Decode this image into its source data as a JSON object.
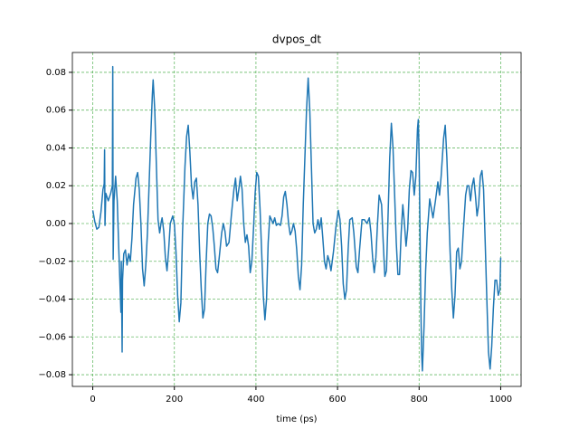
{
  "chart_data": {
    "type": "line",
    "title": "dvpos_dt",
    "xlabel": "time (ps)",
    "x": [
      0,
      5,
      10,
      15,
      20,
      25,
      28,
      29,
      30,
      32,
      38,
      44,
      48,
      49,
      50,
      52,
      56,
      60,
      64,
      67,
      69,
      70,
      72,
      73,
      76,
      80,
      84,
      88,
      92,
      96,
      100,
      106,
      110,
      114,
      118,
      122,
      126,
      130,
      134,
      138,
      142,
      146,
      148,
      152,
      156,
      160,
      164,
      168,
      170,
      174,
      178,
      182,
      186,
      190,
      196,
      200,
      204,
      208,
      212,
      216,
      220,
      226,
      230,
      234,
      238,
      242,
      246,
      250,
      254,
      258,
      262,
      266,
      270,
      274,
      278,
      282,
      286,
      290,
      294,
      298,
      302,
      306,
      310,
      316,
      320,
      324,
      328,
      334,
      340,
      346,
      350,
      354,
      358,
      362,
      366,
      370,
      374,
      378,
      382,
      386,
      390,
      394,
      398,
      402,
      406,
      410,
      414,
      418,
      422,
      426,
      430,
      434,
      438,
      442,
      446,
      450,
      455,
      460,
      464,
      468,
      472,
      476,
      480,
      484,
      488,
      492,
      496,
      500,
      504,
      508,
      512,
      516,
      520,
      524,
      528,
      532,
      536,
      540,
      544,
      548,
      552,
      556,
      560,
      564,
      568,
      572,
      576,
      580,
      584,
      590,
      596,
      602,
      606,
      610,
      614,
      618,
      622,
      626,
      630,
      636,
      640,
      646,
      650,
      654,
      660,
      666,
      672,
      678,
      682,
      686,
      690,
      694,
      698,
      702,
      708,
      712,
      716,
      720,
      724,
      728,
      732,
      736,
      740,
      744,
      748,
      752,
      756,
      760,
      764,
      768,
      772,
      776,
      780,
      784,
      788,
      792,
      796,
      798,
      800,
      802,
      804,
      806,
      808,
      812,
      816,
      820,
      826,
      830,
      834,
      840,
      846,
      850,
      854,
      860,
      864,
      868,
      872,
      876,
      880,
      884,
      888,
      892,
      896,
      900,
      904,
      908,
      914,
      918,
      922,
      926,
      930,
      934,
      938,
      942,
      946,
      950,
      954,
      958,
      962,
      966,
      970,
      974,
      978,
      982,
      986,
      990,
      994,
      998,
      1000
    ],
    "series": [
      {
        "color": "#1f77b4",
        "values": [
          0.007,
          0.001,
          -0.003,
          -0.002,
          0.006,
          0.018,
          0.021,
          0.039,
          -0.001,
          0.016,
          0.012,
          0.016,
          0.02,
          0.083,
          -0.019,
          0.012,
          0.025,
          0.012,
          -0.015,
          -0.034,
          -0.047,
          -0.02,
          -0.068,
          -0.03,
          -0.016,
          -0.014,
          -0.022,
          -0.016,
          -0.02,
          -0.008,
          0.01,
          0.024,
          0.027,
          0.018,
          0.0,
          -0.024,
          -0.033,
          -0.022,
          -0.005,
          0.02,
          0.045,
          0.068,
          0.076,
          0.06,
          0.03,
          0.002,
          -0.005,
          0.001,
          0.003,
          -0.004,
          -0.018,
          -0.025,
          -0.014,
          0.0,
          0.004,
          0.0,
          -0.015,
          -0.038,
          -0.052,
          -0.042,
          -0.005,
          0.03,
          0.046,
          0.052,
          0.038,
          0.02,
          0.013,
          0.022,
          0.024,
          0.01,
          -0.015,
          -0.035,
          -0.05,
          -0.045,
          -0.02,
          0.0,
          0.005,
          0.004,
          -0.002,
          -0.012,
          -0.024,
          -0.026,
          -0.018,
          -0.005,
          0.0,
          -0.004,
          -0.012,
          -0.01,
          0.005,
          0.018,
          0.024,
          0.012,
          0.018,
          0.025,
          0.018,
          0.0,
          -0.01,
          -0.006,
          -0.012,
          -0.026,
          -0.02,
          -0.003,
          0.016,
          0.027,
          0.025,
          0.008,
          -0.015,
          -0.038,
          -0.051,
          -0.04,
          -0.01,
          0.004,
          0.002,
          0.0,
          0.003,
          -0.001,
          0.0,
          -0.001,
          0.004,
          0.014,
          0.017,
          0.01,
          0.0,
          -0.006,
          -0.004,
          0.0,
          -0.004,
          -0.014,
          -0.028,
          -0.035,
          -0.022,
          0.01,
          0.035,
          0.06,
          0.077,
          0.06,
          0.03,
          0.0,
          -0.005,
          -0.003,
          0.002,
          -0.003,
          0.003,
          -0.008,
          -0.02,
          -0.024,
          -0.017,
          -0.02,
          -0.025,
          -0.015,
          -0.002,
          0.007,
          0.002,
          -0.012,
          -0.032,
          -0.04,
          -0.035,
          -0.014,
          0.002,
          0.003,
          -0.005,
          -0.023,
          -0.026,
          -0.014,
          0.002,
          0.002,
          0.0,
          0.003,
          -0.005,
          -0.018,
          -0.026,
          -0.018,
          0.0,
          0.015,
          0.01,
          -0.01,
          -0.028,
          -0.025,
          0.005,
          0.035,
          0.053,
          0.04,
          0.015,
          -0.01,
          -0.027,
          -0.027,
          -0.005,
          0.01,
          0.0,
          -0.012,
          -0.003,
          0.018,
          0.028,
          0.027,
          0.015,
          0.025,
          0.05,
          0.055,
          0.035,
          0.0,
          -0.04,
          -0.068,
          -0.078,
          -0.055,
          -0.025,
          -0.005,
          0.013,
          0.008,
          0.003,
          0.012,
          0.022,
          0.015,
          0.025,
          0.045,
          0.052,
          0.035,
          0.01,
          -0.015,
          -0.035,
          -0.05,
          -0.038,
          -0.015,
          -0.013,
          -0.024,
          -0.02,
          -0.005,
          0.015,
          0.02,
          0.02,
          0.012,
          0.02,
          0.024,
          0.015,
          0.004,
          0.01,
          0.025,
          0.028,
          0.018,
          -0.01,
          -0.04,
          -0.068,
          -0.077,
          -0.065,
          -0.045,
          -0.03,
          -0.03,
          -0.038,
          -0.035,
          -0.018
        ]
      }
    ],
    "xlim": [
      -50,
      1050
    ],
    "xticks": [
      0,
      200,
      400,
      600,
      800,
      1000
    ],
    "ylim": [
      -0.0862,
      0.0905
    ],
    "yticks": [
      {
        "value": -0.08,
        "label": "−0.08"
      },
      {
        "value": -0.06,
        "label": "−0.06"
      },
      {
        "value": -0.04,
        "label": "−0.04"
      },
      {
        "value": -0.02,
        "label": "−0.02"
      },
      {
        "value": 0,
        "label": "0.00"
      },
      {
        "value": 0.02,
        "label": "0.02"
      },
      {
        "value": 0.04,
        "label": "0.04"
      },
      {
        "value": 0.06,
        "label": "0.06"
      },
      {
        "value": 0.08,
        "label": "0.08"
      }
    ],
    "grid": true,
    "grid_color": "#2ca02c"
  }
}
